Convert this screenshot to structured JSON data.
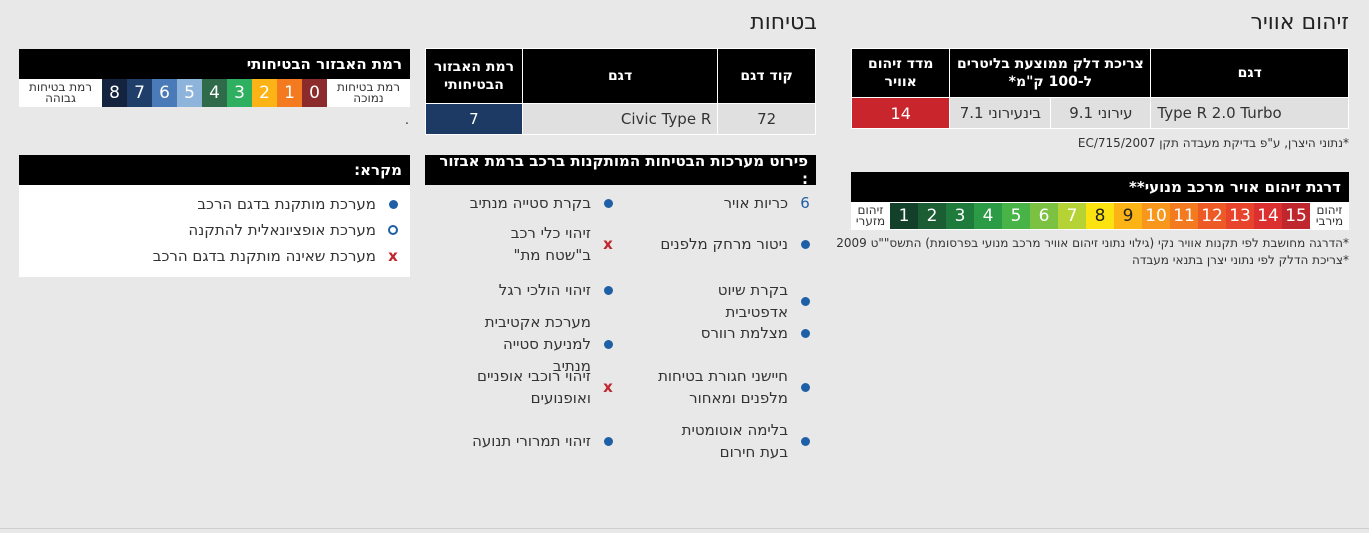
{
  "air": {
    "heading": "זיהום אוויר",
    "table": {
      "headers": [
        "דגם",
        "צריכת דלק ממוצעת בליטרים ל-100 ק\"מ*",
        "מדד זיהום אוויר"
      ],
      "model": "Type R 2.0 Turbo",
      "urban": "עירוני 9.1",
      "interurban": "בינעירוני 7.1",
      "index": "14"
    },
    "note1": "*נתוני היצרן, ע\"פ בדיקת מעבדה תקן EC/715/2007",
    "scale_title": "דרגת זיהום אויר מרכב מנועי**",
    "scale_right_label": "זיהום מירבי",
    "scale_left_label": "זיהום מזערי",
    "scale_values": [
      "15",
      "14",
      "13",
      "12",
      "11",
      "10",
      "9",
      "8",
      "7",
      "6",
      "5",
      "4",
      "3",
      "2",
      "1"
    ],
    "scale_colors": [
      "#c0262d",
      "#dc2f2f",
      "#e8442c",
      "#ee5a25",
      "#f47a20",
      "#f8971b",
      "#fbb315",
      "#fde212",
      "#b5d335",
      "#7cc242",
      "#48b347",
      "#2b9b45",
      "#1f7b3c",
      "#1b5e34",
      "#12402a"
    ],
    "note2": "*הדרגה מחושבת לפי תקנות אוויר נקי (גילוי נתוני זיהום אוויר מרכב מנועי בפרסומת) התשס\"\"ט 2009",
    "note3": "*צריכת הדלק לפי נתוני יצרן בתנאי מעבדה"
  },
  "safety": {
    "heading": "בטיחות",
    "table": {
      "headers": [
        "קוד דגם",
        "דגם",
        "רמת האבזור הבטיחותי"
      ],
      "code": "72",
      "model": "Civic Type R",
      "level": "7"
    },
    "systems_title": "פירוט מערכות הבטיחות המותקנות ברכב ברמת אבזור :",
    "systems_right": [
      {
        "label": "כריות אויר",
        "mark": "6"
      },
      {
        "label": "ניטור מרחק מלפנים",
        "mark": "dot"
      },
      {
        "label": "בקרת שיוט אדפטיבית",
        "mark": "dot"
      },
      {
        "label": "מצלמת רוורס",
        "mark": "dot"
      },
      {
        "label": "חיישני חגורת בטיחות מלפנים ומאחור",
        "mark": "dot"
      },
      {
        "label": "בלימה אוטומטית בעת חירום",
        "mark": "dot"
      }
    ],
    "systems_left": [
      {
        "label": "בקרת סטייה מנתיב",
        "mark": "dot"
      },
      {
        "label": "זיהוי כלי רכב ב\"שטח מת\"",
        "mark": "x"
      },
      {
        "label": "זיהוי הולכי רגל",
        "mark": "dot"
      },
      {
        "label": "מערכת אקטיבית למניעת סטייה מנתיב",
        "mark": "dot"
      },
      {
        "label": "זיהוי רוכבי אופניים ואופנועים",
        "mark": "x"
      },
      {
        "label": "זיהוי תמרורי תנועה",
        "mark": "dot"
      }
    ],
    "level_title": "רמת האבזור הבטיחותי",
    "level_low_label": "רמת בטיחות נמוכה",
    "level_high_label": "רמת בטיחות גבוהה",
    "level_values": [
      "0",
      "1",
      "2",
      "3",
      "4",
      "5",
      "6",
      "7",
      "8"
    ],
    "level_colors": [
      "#8c2b2b",
      "#f47a20",
      "#fbb315",
      "#2fb060",
      "#2f6b4a",
      "#8fb4dc",
      "#4a7ab8",
      "#1f3f6a",
      "#14243f"
    ],
    "dot_text": ".",
    "legend_title": "מקרא:",
    "legend": [
      {
        "label": "מערכת מותקנת בדגם הרכב",
        "mark": "dot"
      },
      {
        "label": "מערכת אופציונאלית להתקנה",
        "mark": "ring"
      },
      {
        "label": "מערכת שאינה מותקנת בדגם הרכב",
        "mark": "x"
      }
    ]
  }
}
